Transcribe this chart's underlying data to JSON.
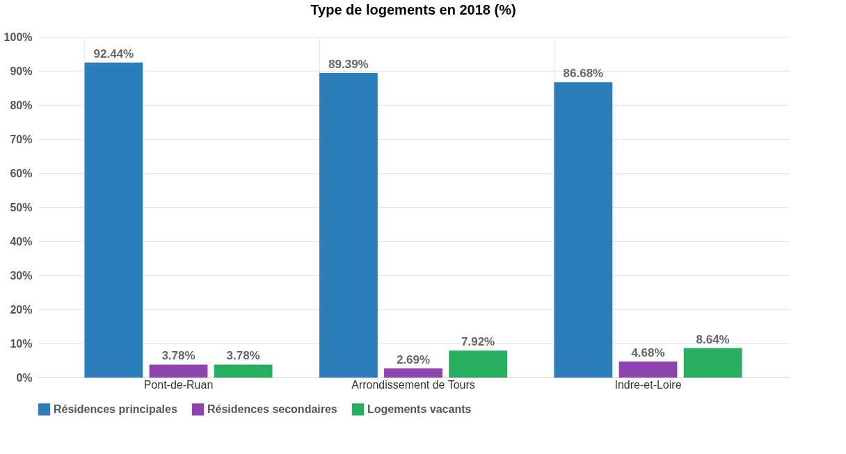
{
  "chart_data": {
    "type": "bar",
    "title": "Type de logements en 2018 (%)",
    "categories": [
      "Pont-de-Ruan",
      "Arrondissement de Tours",
      "Indre-et-Loire"
    ],
    "series": [
      {
        "name": "Résidences principales",
        "color": "#2a7fba",
        "values": [
          92.44,
          89.39,
          86.68
        ],
        "value_labels": [
          "92.44%",
          "89.39%",
          "86.68%"
        ]
      },
      {
        "name": "Résidences secondaires",
        "color": "#8e44ad",
        "values": [
          3.78,
          2.69,
          4.68
        ],
        "value_labels": [
          "3.78%",
          "2.69%",
          "4.68%"
        ]
      },
      {
        "name": "Logements vacants",
        "color": "#27ae60",
        "values": [
          3.78,
          7.92,
          8.64
        ],
        "value_labels": [
          "3.78%",
          "7.92%",
          "8.64%"
        ]
      }
    ],
    "ylim": [
      0,
      100
    ],
    "yticks": [
      {
        "value": 0,
        "label": "0%"
      },
      {
        "value": 10,
        "label": "10%"
      },
      {
        "value": 20,
        "label": "20%"
      },
      {
        "value": 30,
        "label": "30%"
      },
      {
        "value": 40,
        "label": "40%"
      },
      {
        "value": 50,
        "label": "50%"
      },
      {
        "value": 60,
        "label": "60%"
      },
      {
        "value": 70,
        "label": "70%"
      },
      {
        "value": 80,
        "label": "80%"
      },
      {
        "value": 90,
        "label": "90%"
      },
      {
        "value": 100,
        "label": "100%"
      }
    ],
    "grid": true,
    "legend": "bottom"
  }
}
